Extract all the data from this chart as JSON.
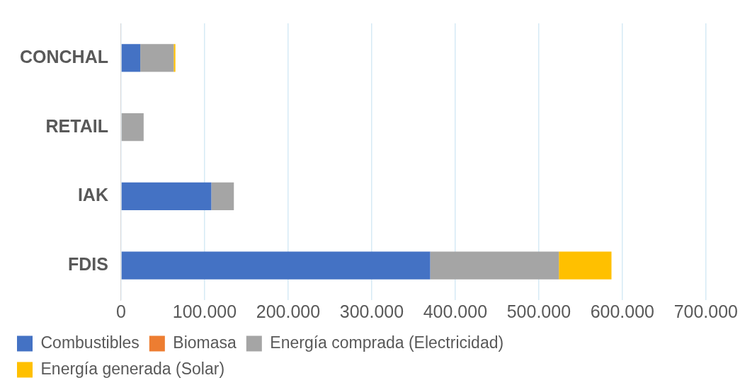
{
  "chart_data": {
    "type": "bar",
    "orientation": "horizontal",
    "stacked": true,
    "categories": [
      "CONCHAL",
      "RETAIL",
      "IAK",
      "FDIS"
    ],
    "series": [
      {
        "name": "Combustibles",
        "color": "#4472c4",
        "values": [
          23000,
          0,
          108000,
          370000
        ]
      },
      {
        "name": "Biomasa",
        "color": "#ed7d31",
        "values": [
          0,
          0,
          0,
          0
        ]
      },
      {
        "name": "Energía comprada (Electricidad)",
        "color": "#a5a5a5",
        "values": [
          40000,
          27000,
          27000,
          154000
        ]
      },
      {
        "name": "Energía generada (Solar)",
        "color": "#ffc000",
        "values": [
          2000,
          0,
          0,
          63000
        ]
      }
    ],
    "xlim": [
      0,
      700000
    ],
    "xticks": [
      {
        "value": 0,
        "label": "0"
      },
      {
        "value": 100000,
        "label": "100.000"
      },
      {
        "value": 200000,
        "label": "200.000"
      },
      {
        "value": 300000,
        "label": "300.000"
      },
      {
        "value": 400000,
        "label": "400.000"
      },
      {
        "value": 500000,
        "label": "500.000"
      },
      {
        "value": 600000,
        "label": "600.000"
      },
      {
        "value": 700000,
        "label": "700.000"
      }
    ],
    "grid": "x",
    "legend": "bottom"
  }
}
